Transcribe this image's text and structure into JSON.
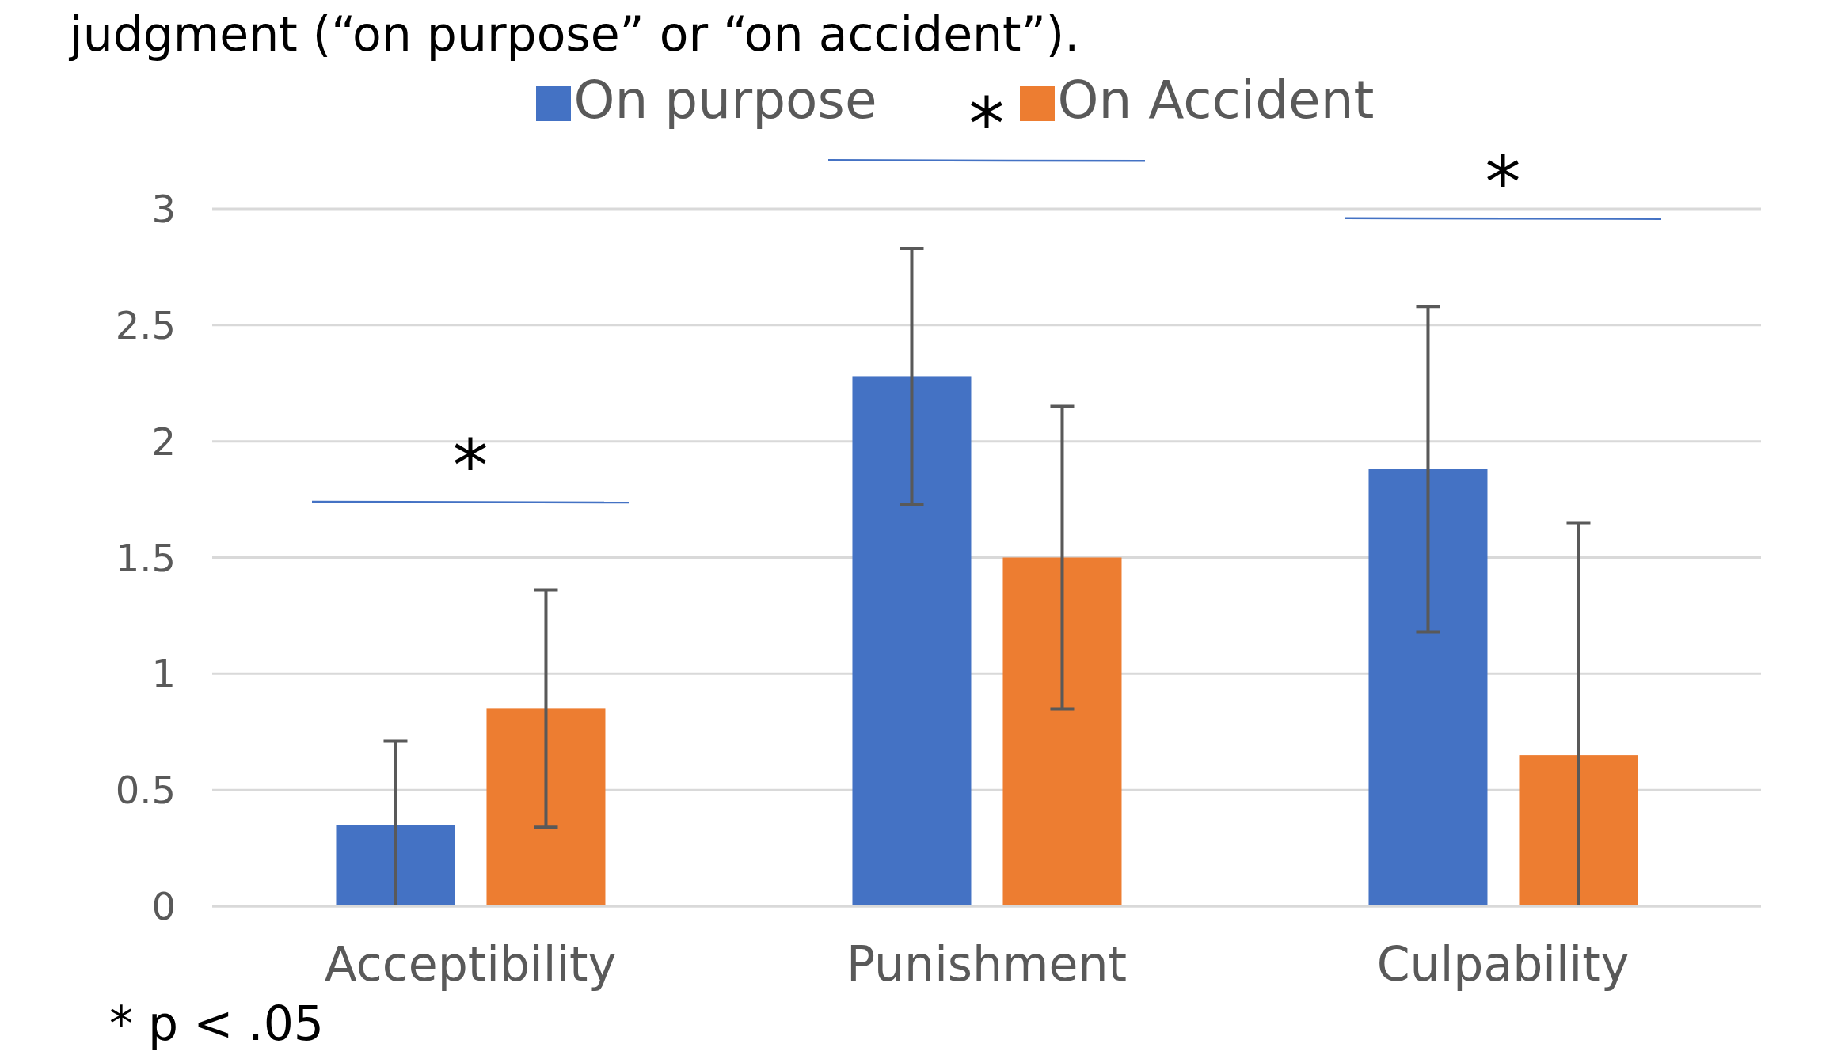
{
  "chart_data": {
    "type": "bar",
    "title": "judgment (“on purpose” or “on accident”).",
    "categories": [
      "Acceptibility",
      "Punishment",
      "Culpability"
    ],
    "series": [
      {
        "name": "On purpose",
        "color": "#4472c4",
        "values": [
          0.35,
          2.28,
          1.88
        ],
        "errors": [
          [
            0,
            0.71
          ],
          0.55,
          0.7
        ]
      },
      {
        "name": "On Accident",
        "color": "#ed7d31",
        "values": [
          0.85,
          1.5,
          0.65
        ],
        "errors": [
          0.51,
          0.65,
          [
            0,
            1.65
          ]
        ]
      }
    ],
    "ylim": [
      0,
      3
    ],
    "yticks": [
      0,
      0.5,
      1,
      1.5,
      2,
      2.5,
      3
    ],
    "grid": "y",
    "legend": "top",
    "annotations": [
      "*",
      "*",
      "*",
      "* p < .05"
    ]
  }
}
